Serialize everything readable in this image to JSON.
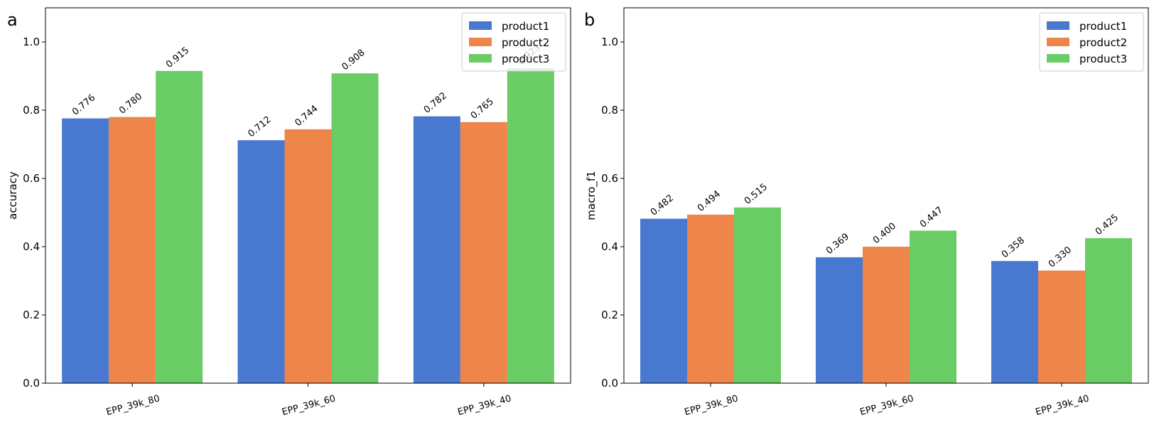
{
  "colors": {
    "product1": "#4878d0",
    "product2": "#ee854a",
    "product3": "#6acc64"
  },
  "chart_data": [
    {
      "panel_letter": "a",
      "type": "bar",
      "ylabel": "accuracy",
      "ylim": [
        0,
        1.1
      ],
      "yticks": [
        "0.0",
        "0.2",
        "0.4",
        "0.6",
        "0.8",
        "1.0"
      ],
      "categories": [
        "EPP_39k_80",
        "EPP_39k_60",
        "EPP_39k_40"
      ],
      "legend_position": "upper right",
      "grid": false,
      "series": [
        {
          "name": "product1",
          "values": [
            0.776,
            0.712,
            0.782
          ],
          "labels": [
            "0.776",
            "0.712",
            "0.782"
          ]
        },
        {
          "name": "product2",
          "values": [
            0.78,
            0.744,
            0.765
          ],
          "labels": [
            "0.780",
            "0.744",
            "0.765"
          ]
        },
        {
          "name": "product3",
          "values": [
            0.915,
            0.908,
            0.923
          ],
          "labels": [
            "0.915",
            "0.908",
            "0.923"
          ]
        }
      ]
    },
    {
      "panel_letter": "b",
      "type": "bar",
      "ylabel": "macro_f1",
      "ylim": [
        0,
        1.1
      ],
      "yticks": [
        "0.0",
        "0.2",
        "0.4",
        "0.6",
        "0.8",
        "1.0"
      ],
      "categories": [
        "EPP_39k_80",
        "EPP_39k_60",
        "EPP_39k_40"
      ],
      "legend_position": "upper right",
      "grid": false,
      "series": [
        {
          "name": "product1",
          "values": [
            0.482,
            0.369,
            0.358
          ],
          "labels": [
            "0.482",
            "0.369",
            "0.358"
          ]
        },
        {
          "name": "product2",
          "values": [
            0.494,
            0.4,
            0.33
          ],
          "labels": [
            "0.494",
            "0.400",
            "0.330"
          ]
        },
        {
          "name": "product3",
          "values": [
            0.515,
            0.447,
            0.425
          ],
          "labels": [
            "0.515",
            "0.447",
            "0.425"
          ]
        }
      ]
    }
  ]
}
